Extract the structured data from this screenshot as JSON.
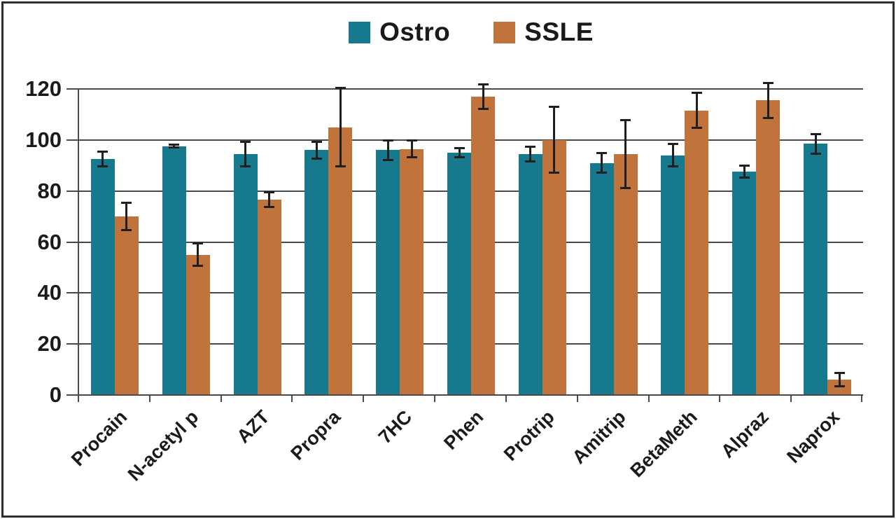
{
  "chart_data": {
    "type": "bar",
    "title": "",
    "xlabel": "",
    "ylabel": "",
    "ylim": [
      0,
      120
    ],
    "yticks": [
      0,
      20,
      40,
      60,
      80,
      100,
      120
    ],
    "grid": true,
    "legend_position": "top-center",
    "categories": [
      "Procain",
      "N-acetyl p",
      "AZT",
      "Propra",
      "7HC",
      "Phen",
      "Protrip",
      "Amitrip",
      "BetaMeth",
      "Alpraz",
      "Naprox"
    ],
    "series": [
      {
        "name": "Ostro",
        "color": "#17798E",
        "values": [
          92.5,
          97.5,
          94.5,
          96,
          96,
          95,
          94.5,
          91,
          94,
          87.5,
          98.5
        ],
        "errors": [
          3,
          0.7,
          5,
          3.5,
          4,
          2,
          3,
          4,
          4.5,
          2.5,
          4
        ]
      },
      {
        "name": "SSLE",
        "color": "#C0743B",
        "values": [
          70,
          55,
          76.5,
          105,
          96.5,
          117,
          100,
          94.5,
          111.5,
          115.5,
          6
        ],
        "errors": [
          5.5,
          4.5,
          3,
          15.5,
          3.5,
          5,
          13,
          13.5,
          7,
          7,
          2.7
        ]
      }
    ]
  },
  "colors": {
    "grid": "#4a4a4a",
    "axis": "#4a4a4a",
    "error_bar": "#1f1f1f",
    "text": "#1a1a1a",
    "frame": "#2d2d2d",
    "background": "#ffffff"
  }
}
